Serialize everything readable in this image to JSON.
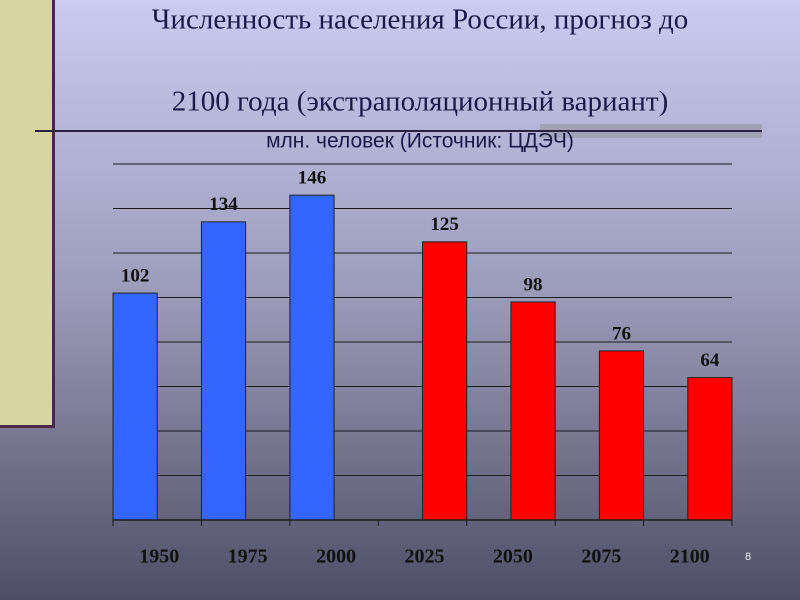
{
  "chart_data": {
    "type": "bar",
    "title_lines": [
      "Численность населения России, прогноз до",
      "2100 года (экстраполяционный вариант)"
    ],
    "subtitle": "млн. человек (Источник: ЦДЭЧ)",
    "categories": [
      "1950",
      "1975",
      "2000",
      "2025",
      "2050",
      "2075",
      "2100"
    ],
    "series": [
      {
        "color": "#3366ff",
        "values": [
          102,
          134,
          146,
          null,
          null,
          null,
          null
        ]
      },
      {
        "color": "#ff0000",
        "values": [
          null,
          null,
          null,
          125,
          98,
          76,
          64
        ]
      }
    ],
    "ylim": [
      0,
      160
    ],
    "yticks": [
      0,
      20,
      40,
      60,
      80,
      100,
      120,
      140,
      160
    ],
    "grid": true
  },
  "page_number": "8"
}
